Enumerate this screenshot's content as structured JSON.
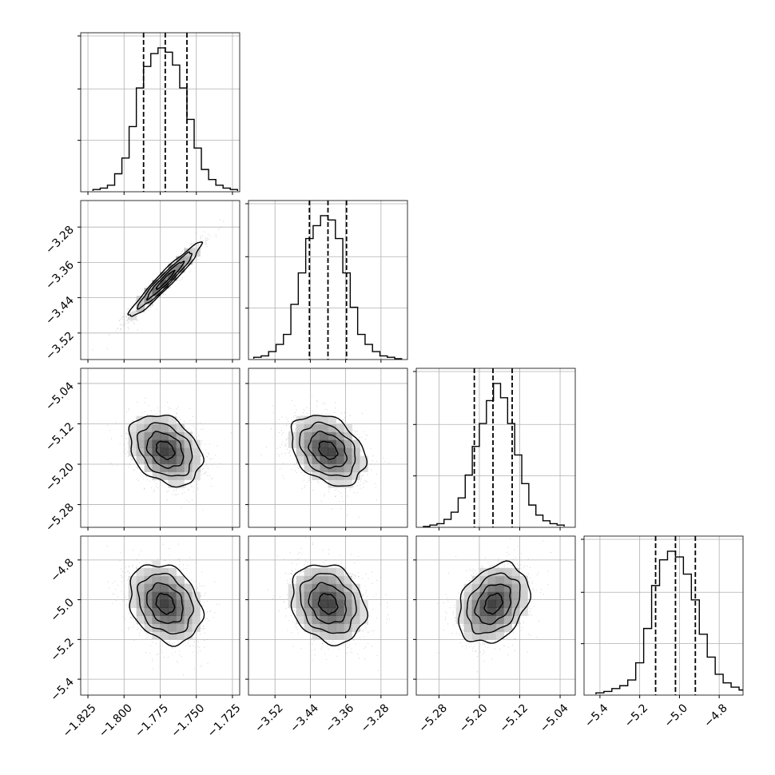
{
  "chart_data": {
    "type": "corner",
    "colors": {
      "line": "#000000",
      "grid": "#b0b0b0",
      "scatter": "#9a9a9a",
      "frame": "#000000"
    },
    "parameters": [
      {
        "lim": [
          -1.83,
          -1.72
        ],
        "ticks": [
          -1.825,
          -1.8,
          -1.775,
          -1.75,
          -1.725
        ],
        "tick_labels": [
          "−1.825",
          "−1.800",
          "−1.775",
          "−1.750",
          "−1.725"
        ],
        "mean": -1.7715,
        "sigma": 0.0125,
        "quantiles": [
          -1.7865,
          -1.7715,
          -1.7565
        ],
        "hist": [
          0.01,
          0.02,
          0.04,
          0.12,
          0.23,
          0.45,
          0.72,
          0.87,
          0.96,
          1.0,
          0.97,
          0.88,
          0.72,
          0.5,
          0.3,
          0.15,
          0.08,
          0.04,
          0.02,
          0.01
        ]
      },
      {
        "lim": [
          -3.58,
          -3.22
        ],
        "ticks": [
          -3.52,
          -3.44,
          -3.36,
          -3.28
        ],
        "tick_labels": [
          "−3.52",
          "−3.44",
          "−3.36",
          "−3.28"
        ],
        "mean": -3.4,
        "sigma": 0.042,
        "quantiles": [
          -3.442,
          -3.4,
          -3.358
        ],
        "hist": [
          0.01,
          0.02,
          0.05,
          0.1,
          0.17,
          0.38,
          0.6,
          0.84,
          0.93,
          1.0,
          0.97,
          0.84,
          0.6,
          0.36,
          0.17,
          0.1,
          0.05,
          0.02,
          0.01,
          0.0
        ]
      },
      {
        "lim": [
          -5.325,
          -5.01
        ],
        "ticks": [
          -5.28,
          -5.2,
          -5.12,
          -5.04
        ],
        "tick_labels": [
          "−5.28",
          "−5.20",
          "−5.12",
          "−5.04"
        ],
        "mean": -5.172,
        "sigma": 0.035,
        "quantiles": [
          -5.21,
          -5.173,
          -5.135
        ],
        "hist": [
          0.0,
          0.01,
          0.02,
          0.05,
          0.1,
          0.2,
          0.36,
          0.56,
          0.72,
          0.88,
          1.0,
          0.9,
          0.72,
          0.5,
          0.3,
          0.15,
          0.08,
          0.04,
          0.02,
          0.01
        ]
      },
      {
        "lim": [
          -5.48,
          -4.68
        ],
        "ticks": [
          -5.4,
          -5.2,
          -5.0,
          -4.8
        ],
        "tick_labels": [
          "−5.4",
          "−5.2",
          "−5.0",
          "−4.8"
        ],
        "mean": -5.02,
        "sigma": 0.1,
        "quantiles": [
          -5.12,
          -5.02,
          -4.92
        ],
        "hist": [
          0.01,
          0.02,
          0.04,
          0.06,
          0.1,
          0.22,
          0.46,
          0.76,
          0.94,
          1.0,
          0.96,
          0.84,
          0.66,
          0.42,
          0.26,
          0.14,
          0.08,
          0.05,
          0.03,
          0.01
        ]
      }
    ],
    "correlations": {
      "1-0": 0.96,
      "2-0": -0.3,
      "2-1": -0.32,
      "3-0": -0.25,
      "3-1": -0.2,
      "3-2": 0.3
    },
    "contour_levels_sigma": [
      0.5,
      1.0,
      1.5,
      2.0
    ],
    "grid": true
  }
}
